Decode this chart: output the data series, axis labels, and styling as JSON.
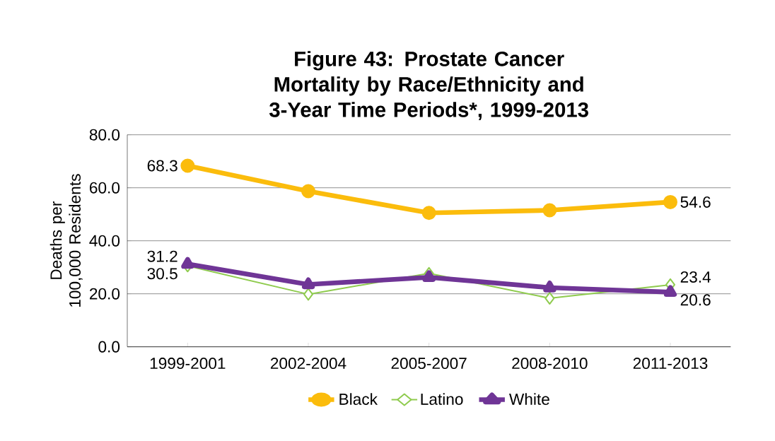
{
  "chart_data": {
    "type": "line",
    "title": "Figure 43: Prostate Cancer Mortality by Race/Ethnicity and 3-Year Time Periods*, 1999-2013",
    "ylabel": "Deaths per 100,000 Residents",
    "categories": [
      "1999-2001",
      "2002-2004",
      "2005-2007",
      "2008-2010",
      "2011-2013"
    ],
    "series": [
      {
        "name": "Black",
        "color": "#fbbc0c",
        "marker": "circle",
        "values": [
          68.3,
          58.7,
          50.5,
          51.5,
          54.6
        ],
        "value_labels": [
          "68.3",
          null,
          null,
          null,
          "54.6"
        ]
      },
      {
        "name": "Latino",
        "color": "#8fcb4e",
        "marker": "diamond",
        "values": [
          30.5,
          19.8,
          27.7,
          18.3,
          23.4
        ],
        "value_labels": [
          "30.5",
          null,
          null,
          null,
          "23.4"
        ]
      },
      {
        "name": "White",
        "color": "#6f3596",
        "marker": "triangle",
        "values": [
          31.2,
          23.5,
          26.2,
          22.3,
          20.6
        ],
        "value_labels": [
          "31.2",
          null,
          null,
          null,
          "20.6"
        ]
      }
    ],
    "ylim": [
      0,
      80
    ],
    "yticks": [
      {
        "value": 0,
        "label": "0.0"
      },
      {
        "value": 20,
        "label": "20.0"
      },
      {
        "value": 40,
        "label": "40.0"
      },
      {
        "value": 60,
        "label": "60.0"
      },
      {
        "value": 80,
        "label": "80.0"
      }
    ],
    "grid": "y",
    "legend": "bottom",
    "line_style": "solid"
  }
}
